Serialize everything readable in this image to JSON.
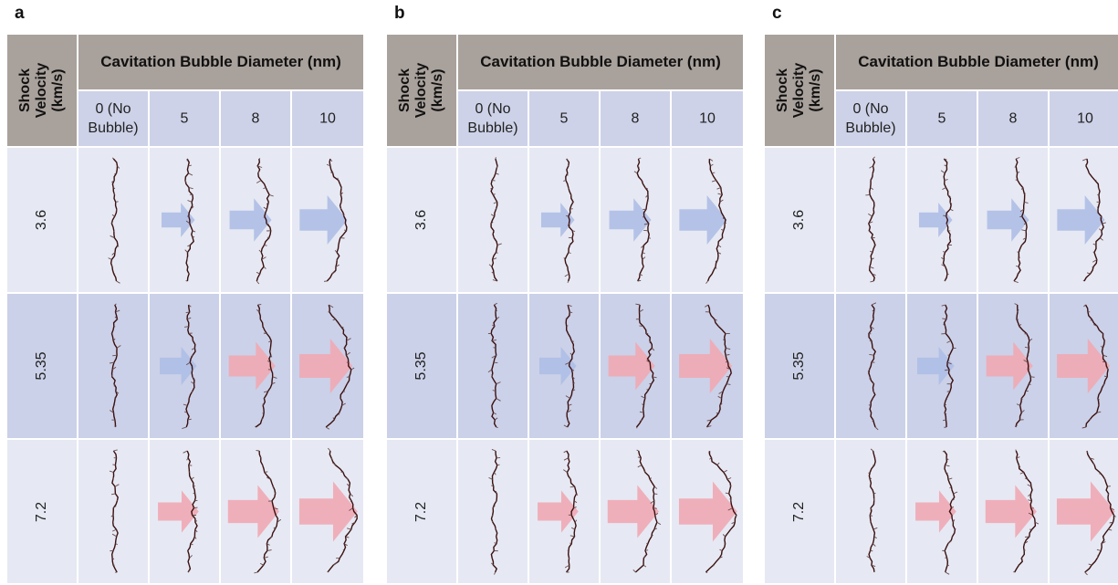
{
  "panels": [
    {
      "label": "a",
      "header": {
        "shock_title_line1": "Shock",
        "shock_title_line2": "Velocity",
        "shock_title_line3": "(km/s)",
        "diameter_title": "Cavitation Bubble Diameter (nm)",
        "columns": [
          {
            "line1": "0 (No",
            "line2": "Bubble)"
          },
          {
            "line1": "5",
            "line2": ""
          },
          {
            "line1": "8",
            "line2": ""
          },
          {
            "line1": "10",
            "line2": ""
          }
        ]
      },
      "rows": [
        {
          "velocity": "3.6",
          "arrows": [
            "none",
            "blue",
            "blue",
            "blue"
          ]
        },
        {
          "velocity": "5.35",
          "arrows": [
            "none",
            "blue",
            "red",
            "red"
          ]
        },
        {
          "velocity": "7.2",
          "arrows": [
            "none",
            "red",
            "red",
            "red"
          ]
        }
      ]
    },
    {
      "label": "b",
      "header": {
        "shock_title_line1": "Shock",
        "shock_title_line2": "Velocity",
        "shock_title_line3": "(km/s)",
        "diameter_title": "Cavitation Bubble Diameter (nm)",
        "columns": [
          {
            "line1": "0 (No",
            "line2": "Bubble)"
          },
          {
            "line1": "5",
            "line2": ""
          },
          {
            "line1": "8",
            "line2": ""
          },
          {
            "line1": "10",
            "line2": ""
          }
        ]
      },
      "rows": [
        {
          "velocity": "3.6",
          "arrows": [
            "none",
            "blue",
            "blue",
            "blue"
          ]
        },
        {
          "velocity": "5.35",
          "arrows": [
            "none",
            "blue",
            "red",
            "red"
          ]
        },
        {
          "velocity": "7.2",
          "arrows": [
            "none",
            "red",
            "red",
            "red"
          ]
        }
      ]
    },
    {
      "label": "c",
      "header": {
        "shock_title_line1": "Shock",
        "shock_title_line2": "Velocity",
        "shock_title_line3": "(km/s)",
        "diameter_title": "Cavitation Bubble Diameter (nm)",
        "columns": [
          {
            "line1": "0 (No",
            "line2": "Bubble)"
          },
          {
            "line1": "5",
            "line2": ""
          },
          {
            "line1": "8",
            "line2": ""
          },
          {
            "line1": "10",
            "line2": ""
          }
        ]
      },
      "rows": [
        {
          "velocity": "3.6",
          "arrows": [
            "none",
            "blue",
            "blue",
            "blue"
          ]
        },
        {
          "velocity": "5.35",
          "arrows": [
            "none",
            "blue",
            "red",
            "red"
          ]
        },
        {
          "velocity": "7.2",
          "arrows": [
            "none",
            "red",
            "red",
            "red"
          ]
        }
      ]
    }
  ],
  "colors": {
    "header_gray": "#a9a19b",
    "header_blue": "#cdd2e8",
    "row_light": "#e6e9f3",
    "row_mid": "#cbd1e8",
    "arrow_blue": "#aebee6",
    "arrow_red": "#f0a9b4",
    "molecule": "#3a1010"
  }
}
